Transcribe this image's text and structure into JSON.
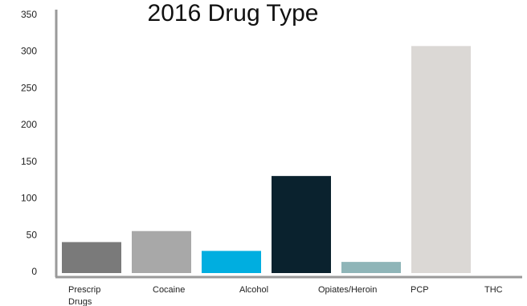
{
  "chart_data": {
    "type": "bar",
    "title": "2016 Drug Type",
    "xlabel": "",
    "ylabel": "",
    "categories": [
      "Prescrip Drugs",
      "Cocaine",
      "Alcohol",
      "Opiates/Heroin",
      "",
      "PCP",
      "THC"
    ],
    "category_lines": [
      [
        "Prescrip",
        "Drugs"
      ],
      [
        "Cocaine"
      ],
      [
        "Alcohol"
      ],
      [
        "Opiates/Heroin"
      ],
      [
        ""
      ],
      [
        "PCP"
      ],
      [
        "THC"
      ]
    ],
    "values": [
      40,
      55,
      28,
      130,
      13,
      307,
      0
    ],
    "colors": [
      "#7a7a7a",
      "#a8a8a8",
      "#00aee0",
      "#0a222e",
      "#8fb5b8",
      "#dbd8d5",
      "#ffffff"
    ],
    "ylim": [
      0,
      350
    ],
    "yticks": [
      0,
      50,
      100,
      150,
      200,
      250,
      300,
      350
    ],
    "grid": false,
    "legend": "none"
  }
}
